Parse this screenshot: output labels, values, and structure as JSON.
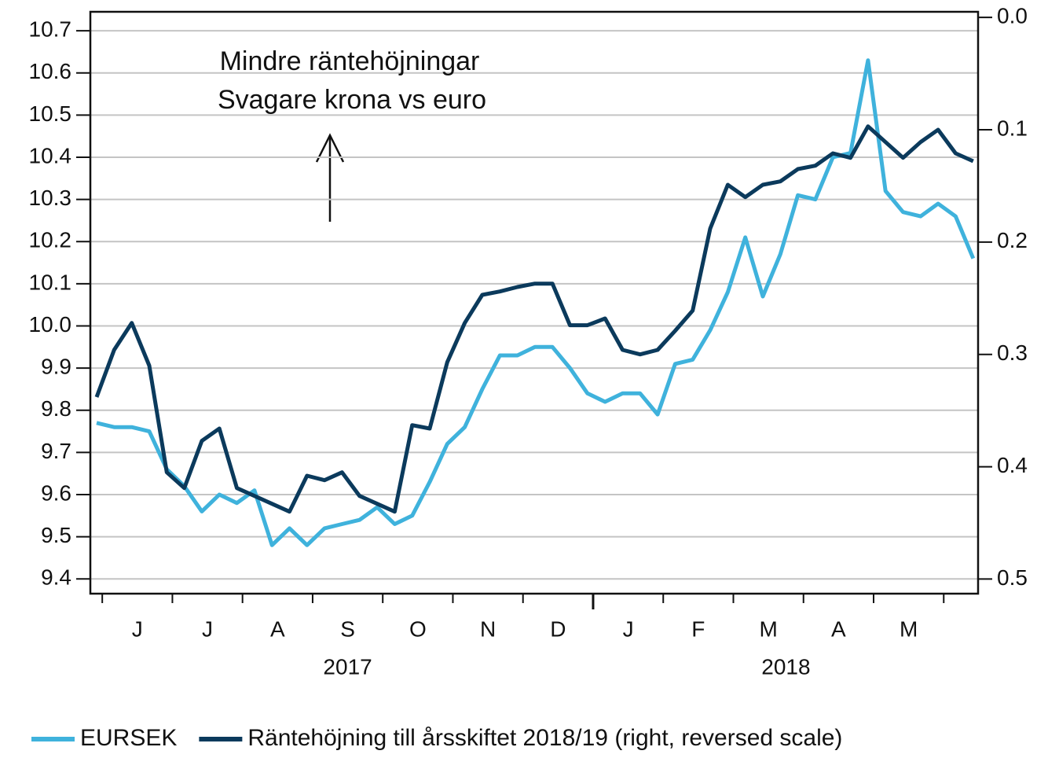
{
  "chart_data": {
    "type": "line",
    "annotations": [
      "Mindre räntehöjningar",
      "Svagare krona vs euro"
    ],
    "x": [
      -0.08,
      0.17,
      0.42,
      0.67,
      0.92,
      1.17,
      1.42,
      1.67,
      1.92,
      2.17,
      2.42,
      2.67,
      2.92,
      3.17,
      3.42,
      3.67,
      3.92,
      4.17,
      4.42,
      4.67,
      4.92,
      5.17,
      5.42,
      5.67,
      5.92,
      6.17,
      6.42,
      6.67,
      6.92,
      7.17,
      7.42,
      7.67,
      7.92,
      8.17,
      8.42,
      8.67,
      8.92,
      9.17,
      9.42,
      9.67,
      9.92,
      10.17,
      10.42,
      10.67,
      10.92,
      11.17,
      11.42,
      11.67,
      11.92,
      12.17,
      12.42
    ],
    "xlim": [
      -0.17,
      12.49
    ],
    "xticks": [
      0,
      1,
      2,
      3,
      4,
      5,
      6,
      7,
      8,
      9,
      10,
      11,
      12
    ],
    "months": [
      "J",
      "J",
      "A",
      "S",
      "O",
      "N",
      "D",
      "J",
      "F",
      "M",
      "A",
      "M"
    ],
    "years": [
      "2017",
      "2018"
    ],
    "series": [
      {
        "name": "EURSEK",
        "color": "#3fb2dc",
        "values": [
          9.77,
          9.76,
          9.76,
          9.75,
          9.66,
          9.62,
          9.56,
          9.6,
          9.58,
          9.61,
          9.48,
          9.52,
          9.48,
          9.52,
          9.53,
          9.54,
          9.57,
          9.53,
          9.55,
          9.63,
          9.72,
          9.76,
          9.85,
          9.93,
          9.93,
          9.95,
          9.95,
          9.9,
          9.84,
          9.82,
          9.84,
          9.84,
          9.79,
          9.91,
          9.92,
          9.99,
          10.08,
          10.21,
          10.07,
          10.17,
          10.31,
          10.3,
          10.4,
          10.41,
          10.63,
          10.32,
          10.27,
          10.26,
          10.29,
          10.26,
          10.16
        ]
      },
      {
        "name": "Räntehöjning till årsskiftet 2018/19 (right, reversed scale)",
        "color": "#0b3a5c",
        "axis": "y2",
        "values": [
          0.338,
          0.296,
          0.272,
          0.31,
          0.405,
          0.419,
          0.377,
          0.366,
          0.419,
          0.426,
          0.433,
          0.44,
          0.408,
          0.412,
          0.405,
          0.426,
          0.433,
          0.44,
          0.363,
          0.366,
          0.307,
          0.272,
          0.247,
          0.244,
          0.24,
          0.237,
          0.237,
          0.274,
          0.274,
          0.268,
          0.296,
          0.3,
          0.296,
          0.279,
          0.261,
          0.188,
          0.149,
          0.16,
          0.149,
          0.146,
          0.135,
          0.132,
          0.121,
          0.125,
          0.097,
          0.111,
          0.125,
          0.111,
          0.1,
          0.121,
          0.128
        ]
      }
    ],
    "ylim": [
      9.365,
      10.745
    ],
    "yticks": [
      9.4,
      9.5,
      9.6,
      9.7,
      9.8,
      9.9,
      {
        "value": 10.0,
        "label": "10.0"
      },
      10.1,
      10.2,
      10.3,
      10.4,
      10.5,
      10.6,
      10.7
    ],
    "y2lim": [
      -0.005,
      0.513
    ],
    "y2_reversed": true,
    "y2ticks": [
      {
        "value": 0,
        "label": "0.0"
      },
      0.1,
      0.2,
      0.3,
      0.4,
      0.5
    ],
    "grid": true,
    "legend": "bottom"
  }
}
